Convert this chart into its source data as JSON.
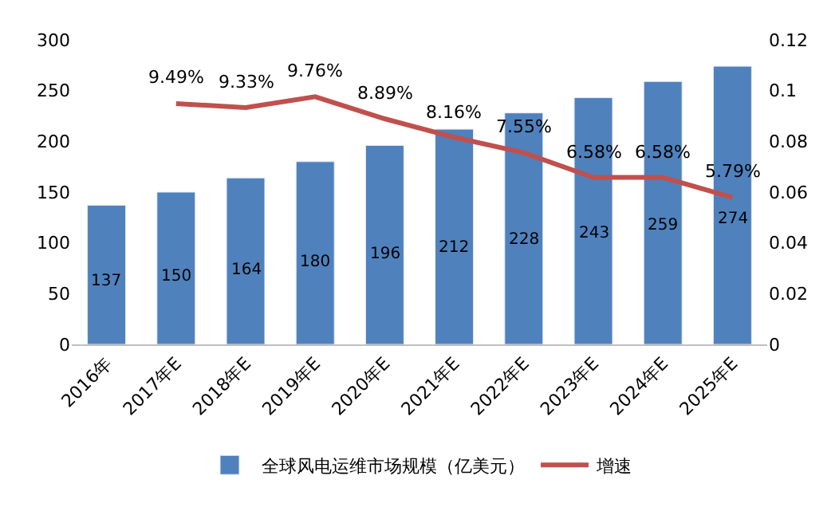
{
  "chart_data": {
    "type": "bar",
    "categories": [
      "2016年",
      "2017年E",
      "2018年E",
      "2019年E",
      "2020年E",
      "2021年E",
      "2022年E",
      "2023年E",
      "2024年E",
      "2025年E"
    ],
    "series": [
      {
        "name": "全球风电运维市场规模（亿美元）",
        "color": "#4f81bd",
        "values": [
          137,
          150,
          164,
          180,
          196,
          212,
          228,
          243,
          259,
          274
        ],
        "value_labels": [
          "137",
          "150",
          "164",
          "180",
          "196",
          "212",
          "228",
          "243",
          "259",
          "274"
        ]
      },
      {
        "name": "增速",
        "type": "line",
        "axis": "y2",
        "color": "#c0504d",
        "values": [
          null,
          0.0949,
          0.0933,
          0.0976,
          0.0889,
          0.0816,
          0.0755,
          0.0658,
          0.0658,
          0.0579
        ],
        "value_labels": [
          null,
          "9.49%",
          "9.33%",
          "9.76%",
          "8.89%",
          "8.16%",
          "7.55%",
          "6.58%",
          "6.58%",
          "5.79%"
        ]
      }
    ],
    "ylim": [
      0,
      300
    ],
    "yticks": [
      0,
      50,
      100,
      150,
      200,
      250,
      300
    ],
    "y2lim": [
      0,
      0.12
    ],
    "y2ticks": [
      0,
      0.02,
      0.04,
      0.06,
      0.08,
      0.1,
      0.12
    ],
    "legend": "bottom",
    "marker": "none",
    "line_style": "solid"
  }
}
